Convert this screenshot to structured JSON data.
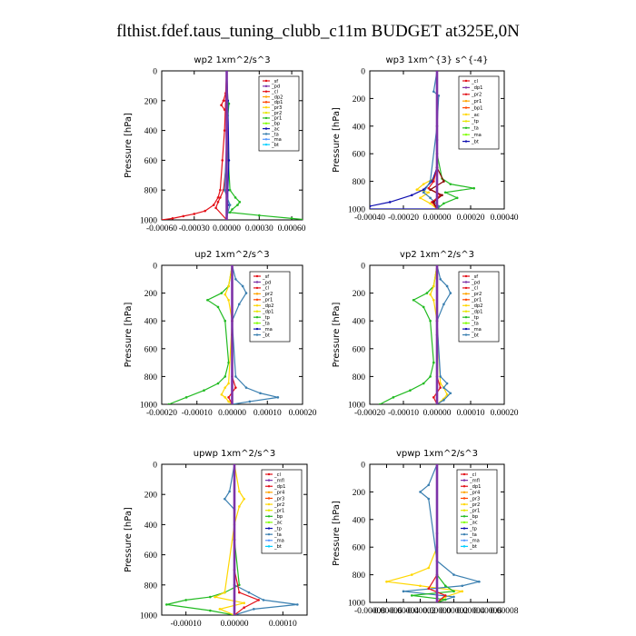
{
  "title": "flthist.fdef.taus_tuning_clubb_c11m  BUDGET at325E,0N",
  "colors": {
    "red": "#e3121a",
    "purple": "#7d33a8",
    "dark_red": "#8b0000",
    "orange_red": "#ff4500",
    "orange": "#ffa500",
    "gold": "#ffd700",
    "yellow": "#e6e600",
    "green": "#22bb22",
    "lime": "#7fff00",
    "blue": "#1010b0",
    "steel": "#3a7fb0",
    "cyan": "#00cfff",
    "light_blue": "#5599ff",
    "pink": "#ff44aa"
  },
  "chart_data": [
    {
      "type": "line",
      "title": "wp2  1xm^2/s^3",
      "ylabel": "Pressure [hPa]",
      "xlim": [
        -0.0006,
        0.0007
      ],
      "ylim": [
        1000,
        0
      ],
      "xticks": [
        -0.0006,
        -0.0003,
        0.0,
        0.0003,
        0.0006
      ],
      "xticklabels": [
        "-0.00060",
        "-0.00030",
        "0.00000",
        "0.00030",
        "0.00060"
      ],
      "yticks": [
        0,
        200,
        400,
        600,
        800,
        1000
      ],
      "legend": [
        "sf",
        "pd",
        "cl",
        "dp2",
        "dp1",
        "pr3",
        "pr2",
        "pr1",
        "bp",
        "ac",
        "ta",
        "ma",
        "bt"
      ],
      "series": [
        {
          "name": "dp1",
          "color": "#e3121a",
          "x": [
            0.0,
            -1e-05,
            -2e-05,
            -4e-05,
            -6e-05,
            -8e-05,
            -0.00012,
            -0.0002,
            -0.0003,
            -0.0004,
            -0.0005,
            -0.0006
          ],
          "y": [
            0,
            200,
            400,
            600,
            800,
            850,
            900,
            940,
            960,
            975,
            990,
            1000
          ]
        },
        {
          "name": "dp2",
          "color": "#e3121a",
          "x": [
            0.0,
            -1e-05,
            -3e-05,
            -5e-05,
            -2e-05,
            1e-05,
            0.0,
            -3e-05,
            -6e-05,
            -8e-05,
            -0.0001,
            0.0
          ],
          "y": [
            0,
            150,
            200,
            230,
            260,
            300,
            600,
            800,
            850,
            880,
            920,
            1000
          ]
        },
        {
          "name": "pr1",
          "color": "#22bb22",
          "x": [
            0.0,
            1e-05,
            2e-05,
            0.0,
            3e-05,
            8e-05,
            0.00012,
            0.0001,
            5e-05,
            3e-05,
            0.0003,
            0.0006,
            0.00075
          ],
          "y": [
            0,
            200,
            220,
            400,
            800,
            850,
            880,
            900,
            930,
            950,
            970,
            990,
            1000
          ]
        },
        {
          "name": "bp",
          "color": "#1010b0",
          "x": [
            0.0,
            1e-05,
            2e-05,
            1e-05,
            1e-05,
            0.0
          ],
          "y": [
            0,
            200,
            600,
            800,
            900,
            1000
          ]
        },
        {
          "name": "ta",
          "color": "#3a7fb0",
          "x": [
            0.0,
            1e-05,
            -2e-05,
            3e-05,
            1e-05,
            0.0
          ],
          "y": [
            0,
            300,
            800,
            900,
            950,
            1000
          ]
        },
        {
          "name": "bt",
          "color": "#7d33a8",
          "x": [
            0.0,
            0.0,
            0.0,
            0.0,
            0.0,
            0.0
          ],
          "y": [
            0,
            200,
            400,
            600,
            800,
            1000
          ]
        }
      ]
    },
    {
      "type": "line",
      "title": "wp3  1xm^{3} s^{-4}",
      "ylabel": "Pressure [hPa]",
      "xlim": [
        -0.0004,
        0.0004
      ],
      "ylim": [
        1000,
        0
      ],
      "xticks": [
        -0.0004,
        -0.0002,
        0.0,
        0.0002,
        0.0004
      ],
      "xticklabels": [
        "-0.00040",
        "-0.00020",
        "0.00000",
        "0.00020",
        "0.00040"
      ],
      "yticks": [
        0,
        200,
        400,
        600,
        800,
        1000
      ],
      "legend": [
        "cl",
        "dp1",
        "pr2",
        "pr1",
        "bp1",
        "ac",
        "tp",
        "ta",
        "ma",
        "bt"
      ],
      "series": [
        {
          "name": "pr2",
          "color": "#ffd700",
          "x": [
            0.0,
            0.0,
            0.0,
            -2e-05,
            -8e-05,
            -0.00012,
            -5e-05,
            -0.0001,
            -4e-05,
            0.0
          ],
          "y": [
            0,
            400,
            700,
            780,
            820,
            860,
            880,
            920,
            960,
            1000
          ]
        },
        {
          "name": "pr1",
          "color": "#22bb22",
          "x": [
            0.0,
            0.0,
            3e-05,
            8e-05,
            0.00022,
            5e-05,
            0.00012,
            4e-05,
            0.0
          ],
          "y": [
            0,
            600,
            780,
            820,
            850,
            880,
            920,
            960,
            1000
          ]
        },
        {
          "name": "ac",
          "color": "#1010b0",
          "x": [
            0.0,
            0.0,
            -3e-05,
            -8e-05,
            -0.00015,
            -0.00028,
            -0.0004,
            -0.00042,
            0.0
          ],
          "y": [
            0,
            700,
            800,
            860,
            900,
            950,
            980,
            1000,
            1000
          ]
        },
        {
          "name": "tp",
          "color": "#3a7fb0",
          "x": [
            0.0,
            -2e-05,
            1e-05,
            0.0,
            -4e-05,
            -8e-05,
            -4e-05,
            1e-05,
            0.0
          ],
          "y": [
            0,
            150,
            180,
            400,
            800,
            880,
            920,
            980,
            1000
          ]
        },
        {
          "name": "dp1",
          "color": "#e3121a",
          "x": [
            0.0,
            0.0,
            -2e-05,
            -5e-05,
            2e-05,
            -3e-05,
            0.0
          ],
          "y": [
            0,
            700,
            800,
            850,
            900,
            950,
            1000
          ]
        },
        {
          "name": "cl",
          "color": "#8b0000",
          "x": [
            0.0,
            0.0,
            4e-05,
            -4e-05,
            3e-05,
            -2e-05,
            0.0
          ],
          "y": [
            0,
            700,
            800,
            860,
            900,
            950,
            1000
          ]
        },
        {
          "name": "bt",
          "color": "#7d33a8",
          "x": [
            0.0,
            0.0,
            0.0
          ],
          "y": [
            0,
            500,
            1000
          ]
        }
      ]
    },
    {
      "type": "line",
      "title": "up2  1xm^2/s^3",
      "ylabel": "Pressure [hPa]",
      "xlim": [
        -0.0002,
        0.0002
      ],
      "ylim": [
        1000,
        0
      ],
      "xticks": [
        -0.0002,
        -0.0001,
        0.0,
        0.0001,
        0.0002
      ],
      "xticklabels": [
        "-0.00020",
        "-0.00010",
        "0.00000",
        "0.00010",
        "0.00020"
      ],
      "yticks": [
        0,
        200,
        400,
        600,
        800,
        1000
      ],
      "legend": [
        "sf",
        "pd",
        "cl",
        "pr2",
        "pr1",
        "dp2",
        "dp1",
        "tp",
        "ta",
        "ma",
        "bt"
      ],
      "series": [
        {
          "name": "pr1",
          "color": "#22bb22",
          "x": [
            0.0,
            -1e-05,
            -3e-05,
            -7e-05,
            -4e-05,
            -2e-05,
            -1e-05,
            -2e-05,
            -4e-05,
            -8e-05,
            -0.00013,
            -0.00018
          ],
          "y": [
            0,
            150,
            200,
            250,
            300,
            400,
            700,
            800,
            850,
            900,
            950,
            1000
          ]
        },
        {
          "name": "pr2",
          "color": "#ffd700",
          "x": [
            0.0,
            -1e-05,
            -2e-05,
            -1e-05,
            0.0,
            -1e-05,
            -2e-05,
            -3e-05,
            -2e-05,
            -1e-05,
            0.0
          ],
          "y": [
            0,
            150,
            210,
            250,
            400,
            850,
            880,
            930,
            950,
            980,
            1000
          ]
        },
        {
          "name": "tp",
          "color": "#3a7fb0",
          "x": [
            0.0,
            1e-05,
            3e-05,
            4e-05,
            2e-05,
            0.0,
            1e-05,
            4e-05,
            8e-05,
            0.00013,
            5e-05,
            0.0
          ],
          "y": [
            0,
            100,
            150,
            200,
            280,
            400,
            800,
            880,
            920,
            950,
            980,
            1000
          ]
        },
        {
          "name": "dp1",
          "color": "#e3121a",
          "x": [
            0.0,
            0.0,
            0.0,
            1e-05,
            -1e-05,
            0.0
          ],
          "y": [
            0,
            400,
            800,
            880,
            950,
            1000
          ]
        },
        {
          "name": "bt",
          "color": "#7d33a8",
          "x": [
            0.0,
            0.0,
            0.0
          ],
          "y": [
            0,
            500,
            1000
          ]
        }
      ]
    },
    {
      "type": "line",
      "title": "vp2  1xm^2/s^3",
      "ylabel": "Pressure [hPa]",
      "xlim": [
        -0.0002,
        0.0002
      ],
      "ylim": [
        1000,
        0
      ],
      "xticks": [
        -0.0002,
        -0.0001,
        0.0,
        0.0001,
        0.0002
      ],
      "xticklabels": [
        "-0.00020",
        "-0.00010",
        "0.00000",
        "0.00010",
        "0.00020"
      ],
      "yticks": [
        0,
        200,
        400,
        600,
        800,
        1000
      ],
      "legend": [
        "sf",
        "pd",
        "cl",
        "pr2",
        "pr1",
        "dp2",
        "dp1",
        "tp",
        "ta",
        "ma",
        "bt"
      ],
      "series": [
        {
          "name": "pr1",
          "color": "#22bb22",
          "x": [
            0.0,
            -1e-05,
            -3e-05,
            -7e-05,
            -4e-05,
            -2e-05,
            -1e-05,
            -2e-05,
            -4e-05,
            -8e-05,
            -0.00013,
            -0.00017
          ],
          "y": [
            0,
            150,
            200,
            250,
            300,
            400,
            700,
            800,
            850,
            900,
            950,
            1000
          ]
        },
        {
          "name": "pr2",
          "color": "#ffd700",
          "x": [
            0.0,
            -1e-05,
            -2e-05,
            -1e-05,
            0.0,
            1e-05,
            2e-05,
            3e-05,
            2e-05,
            0.0
          ],
          "y": [
            0,
            150,
            210,
            250,
            400,
            850,
            880,
            930,
            960,
            1000
          ]
        },
        {
          "name": "tp",
          "color": "#3a7fb0",
          "x": [
            0.0,
            1e-05,
            3e-05,
            4e-05,
            2e-05,
            0.0,
            1e-05,
            3e-05,
            2e-05,
            4e-05,
            2e-05,
            0.0
          ],
          "y": [
            0,
            100,
            150,
            200,
            280,
            400,
            800,
            850,
            880,
            920,
            970,
            1000
          ]
        },
        {
          "name": "dp1",
          "color": "#e3121a",
          "x": [
            0.0,
            0.0,
            0.0,
            1e-05,
            -1e-05,
            0.0
          ],
          "y": [
            0,
            400,
            800,
            880,
            950,
            1000
          ]
        },
        {
          "name": "bt",
          "color": "#7d33a8",
          "x": [
            0.0,
            0.0,
            0.0
          ],
          "y": [
            0,
            500,
            1000
          ]
        }
      ]
    },
    {
      "type": "line",
      "title": "upwp  1xm^2/s^3",
      "ylabel": "Pressure [hPa]",
      "xlim": [
        -0.00015,
        0.00015
      ],
      "ylim": [
        1000,
        0
      ],
      "xticks": [
        -0.0001,
        0.0,
        0.0001
      ],
      "xticklabels": [
        "-0.00010",
        "0.00000",
        "0.00010"
      ],
      "yticks": [
        0,
        200,
        400,
        600,
        800,
        1000
      ],
      "legend": [
        "cl",
        "mfl",
        "dp1",
        "pr4",
        "pr3",
        "pr2",
        "pr1",
        "bp",
        "ac",
        "tp",
        "ta",
        "ma",
        "bt"
      ],
      "series": [
        {
          "name": "pr1",
          "color": "#22bb22",
          "x": [
            0.0,
            0.0,
            1e-05,
            -2e-05,
            -5e-05,
            -0.0001,
            -0.00014,
            -5e-05,
            0.0
          ],
          "y": [
            0,
            500,
            800,
            850,
            880,
            900,
            930,
            970,
            1000
          ]
        },
        {
          "name": "pr3",
          "color": "#ffd700",
          "x": [
            0.0,
            1e-05,
            2e-05,
            1e-05,
            0.0,
            -2e-05,
            -4e-05,
            2e-05,
            -3e-05,
            0.0
          ],
          "y": [
            0,
            180,
            230,
            280,
            400,
            850,
            880,
            920,
            960,
            1000
          ]
        },
        {
          "name": "tp",
          "color": "#3a7fb0",
          "x": [
            0.0,
            -1e-05,
            -2e-05,
            0.0,
            0.0,
            3e-05,
            6e-05,
            0.00013,
            4e-05,
            0.0
          ],
          "y": [
            0,
            180,
            230,
            300,
            800,
            850,
            900,
            930,
            960,
            1000
          ]
        },
        {
          "name": "dp1",
          "color": "#e3121a",
          "x": [
            0.0,
            0.0,
            1e-05,
            5e-05,
            2e-05,
            0.0
          ],
          "y": [
            0,
            700,
            850,
            900,
            950,
            1000
          ]
        },
        {
          "name": "bt",
          "color": "#7d33a8",
          "x": [
            0.0,
            0.0,
            0.0
          ],
          "y": [
            0,
            500,
            1000
          ]
        }
      ]
    },
    {
      "type": "line",
      "title": "vpwp  1xm^2/s^3",
      "ylabel": "Pressure [hPa]",
      "xlim": [
        -8e-05,
        8e-05
      ],
      "ylim": [
        1000,
        0
      ],
      "xticks": [
        -8e-05,
        -6e-05,
        -4e-05,
        -2e-05,
        0.0,
        2e-05,
        4e-05,
        6e-05,
        8e-05
      ],
      "xticklabels": [
        "-0.00008",
        "-0.00006",
        "-0.00004",
        "-0.00002",
        "0.00000",
        "0.00002",
        "0.00004",
        "0.00006",
        "0.00008"
      ],
      "yticks": [
        0,
        200,
        400,
        600,
        800,
        1000
      ],
      "legend": [
        "cl",
        "mfl",
        "dp1",
        "pr4",
        "pr3",
        "pr2",
        "pr1",
        "bp",
        "ac",
        "tp",
        "ta",
        "ma",
        "bt"
      ],
      "series": [
        {
          "name": "pr3",
          "color": "#ffd700",
          "x": [
            0.0,
            0.0,
            -1e-05,
            -3e-05,
            -6e-05,
            -2e-05,
            3e-05,
            1e-05,
            0.0
          ],
          "y": [
            0,
            600,
            750,
            800,
            850,
            880,
            920,
            960,
            1000
          ]
        },
        {
          "name": "tp",
          "color": "#3a7fb0",
          "x": [
            0.0,
            -1e-05,
            -2e-05,
            -1e-05,
            0.0,
            2e-05,
            5e-05,
            3e-05,
            -4e-05,
            2e-05,
            0.0
          ],
          "y": [
            0,
            150,
            200,
            250,
            700,
            800,
            850,
            880,
            920,
            960,
            1000
          ]
        },
        {
          "name": "pr1",
          "color": "#22bb22",
          "x": [
            0.0,
            0.0,
            1e-05,
            2e-05,
            -3e-05,
            1e-05,
            0.0
          ],
          "y": [
            0,
            800,
            880,
            920,
            950,
            980,
            1000
          ]
        },
        {
          "name": "dp1",
          "color": "#e3121a",
          "x": [
            0.0,
            0.0,
            -1e-05,
            1e-05,
            0.0
          ],
          "y": [
            0,
            800,
            900,
            950,
            1000
          ]
        },
        {
          "name": "bt",
          "color": "#7d33a8",
          "x": [
            0.0,
            0.0,
            0.0
          ],
          "y": [
            0,
            500,
            1000
          ]
        }
      ]
    }
  ]
}
